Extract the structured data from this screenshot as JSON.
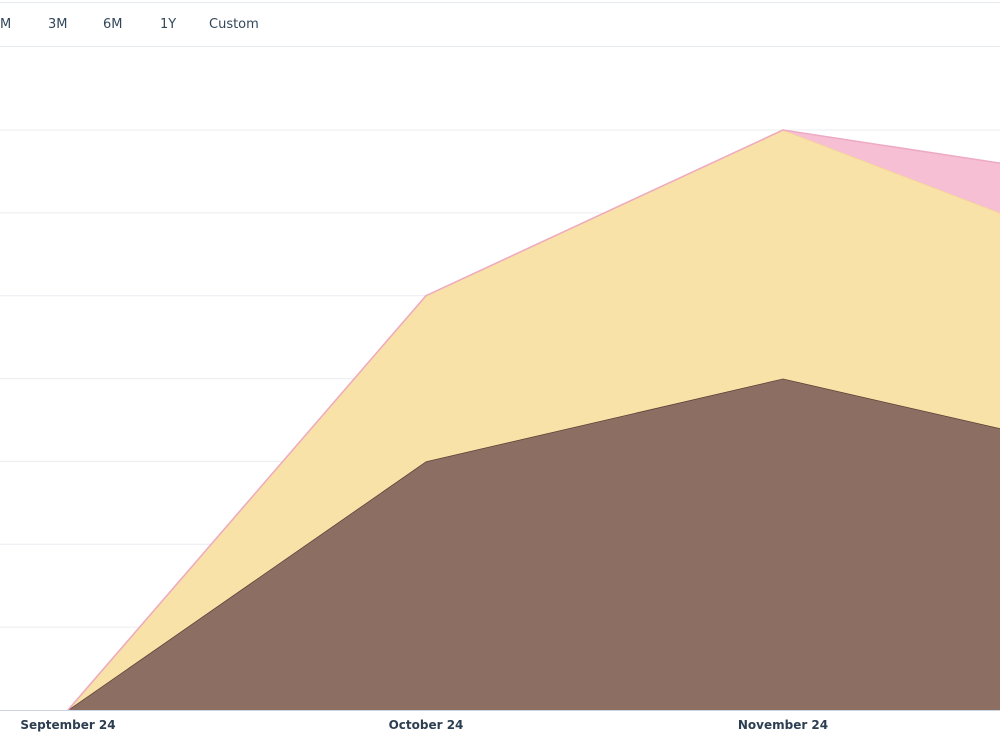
{
  "range_selector": {
    "options": [
      "M",
      "3M",
      "6M",
      "1Y",
      "Custom"
    ]
  },
  "colors": {
    "gridline": "#e9ecef",
    "baseline": "#cbd6e2",
    "series_brown": "#8c6e63",
    "series_brown_line": "#5e4036",
    "series_yellow": "#f8e2a8",
    "series_yellow_line": "#f5d78f",
    "series_pink": "#f6bfd3",
    "series_pink_line": "#eeaac3"
  },
  "chart_data": {
    "type": "area",
    "stacked": true,
    "x": [
      "",
      "October 24",
      "November 24",
      ""
    ],
    "series": [
      {
        "values": [
          0,
          3,
          4,
          3.4
        ]
      },
      {
        "values": [
          0,
          2,
          3,
          2.6
        ]
      },
      {
        "values": [
          0,
          0,
          0,
          0.6
        ]
      }
    ],
    "x_tick_labels": [
      "September 24",
      "October 24",
      "November 24"
    ],
    "ylim": [
      0,
      7
    ],
    "grid": true
  }
}
